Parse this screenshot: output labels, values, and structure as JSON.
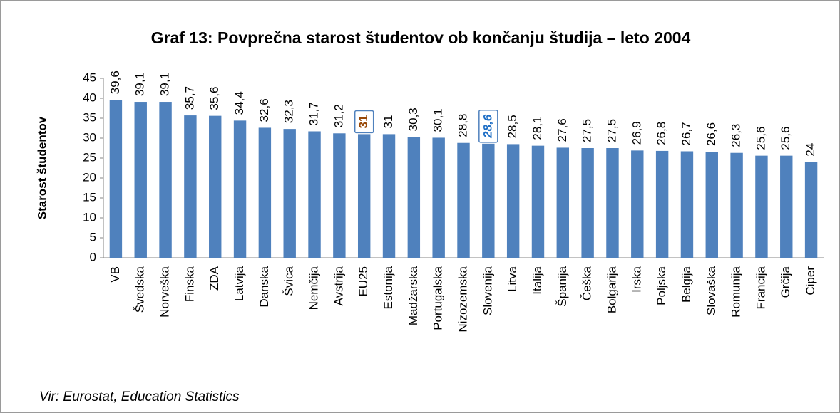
{
  "chart_data": {
    "type": "bar",
    "title": "Graf 13: Povprečna starost študentov ob končanju študija – leto 2004",
    "y_label": "Starost študentov",
    "source": "Vir: Eurostat, Education Statistics",
    "categories": [
      "VB",
      "Švedska",
      "Norveška",
      "Finska",
      "ZDA",
      "Latvija",
      "Danska",
      "Švica",
      "Nemčija",
      "Avstrija",
      "EU25",
      "Estonija",
      "Madžarska",
      "Portugalska",
      "Nizozemska",
      "Slovenija",
      "Litva",
      "Italija",
      "Španija",
      "Češka",
      "Bolgarija",
      "Irska",
      "Poljska",
      "Belgija",
      "Slovaška",
      "Romunija",
      "Francija",
      "Grčija",
      "Ciper"
    ],
    "values": [
      39.6,
      39.1,
      39.1,
      35.7,
      35.6,
      34.4,
      32.6,
      32.3,
      31.7,
      31.2,
      31,
      31,
      30.3,
      30.1,
      28.8,
      28.6,
      28.5,
      28.1,
      27.6,
      27.5,
      27.5,
      26.9,
      26.8,
      26.7,
      26.6,
      26.3,
      25.6,
      25.6,
      24
    ],
    "value_labels": [
      "39,6",
      "39,1",
      "39,1",
      "35,7",
      "35,6",
      "34,4",
      "32,6",
      "32,3",
      "31,7",
      "31,2",
      "31",
      "31",
      "30,3",
      "30,1",
      "28,8",
      "28,6",
      "28,5",
      "28,1",
      "27,6",
      "27,5",
      "27,5",
      "26,9",
      "26,8",
      "26,7",
      "26,6",
      "26,3",
      "25,6",
      "25,6",
      "24"
    ],
    "color": "#4f81bd",
    "ylim": [
      0,
      45
    ],
    "yticks": [
      0,
      5,
      10,
      15,
      20,
      25,
      30,
      35,
      40,
      45
    ],
    "highlights": [
      {
        "index": 10,
        "color": "#984807",
        "italic": false
      },
      {
        "index": 15,
        "color": "#1f6fc6",
        "italic": true
      }
    ]
  }
}
